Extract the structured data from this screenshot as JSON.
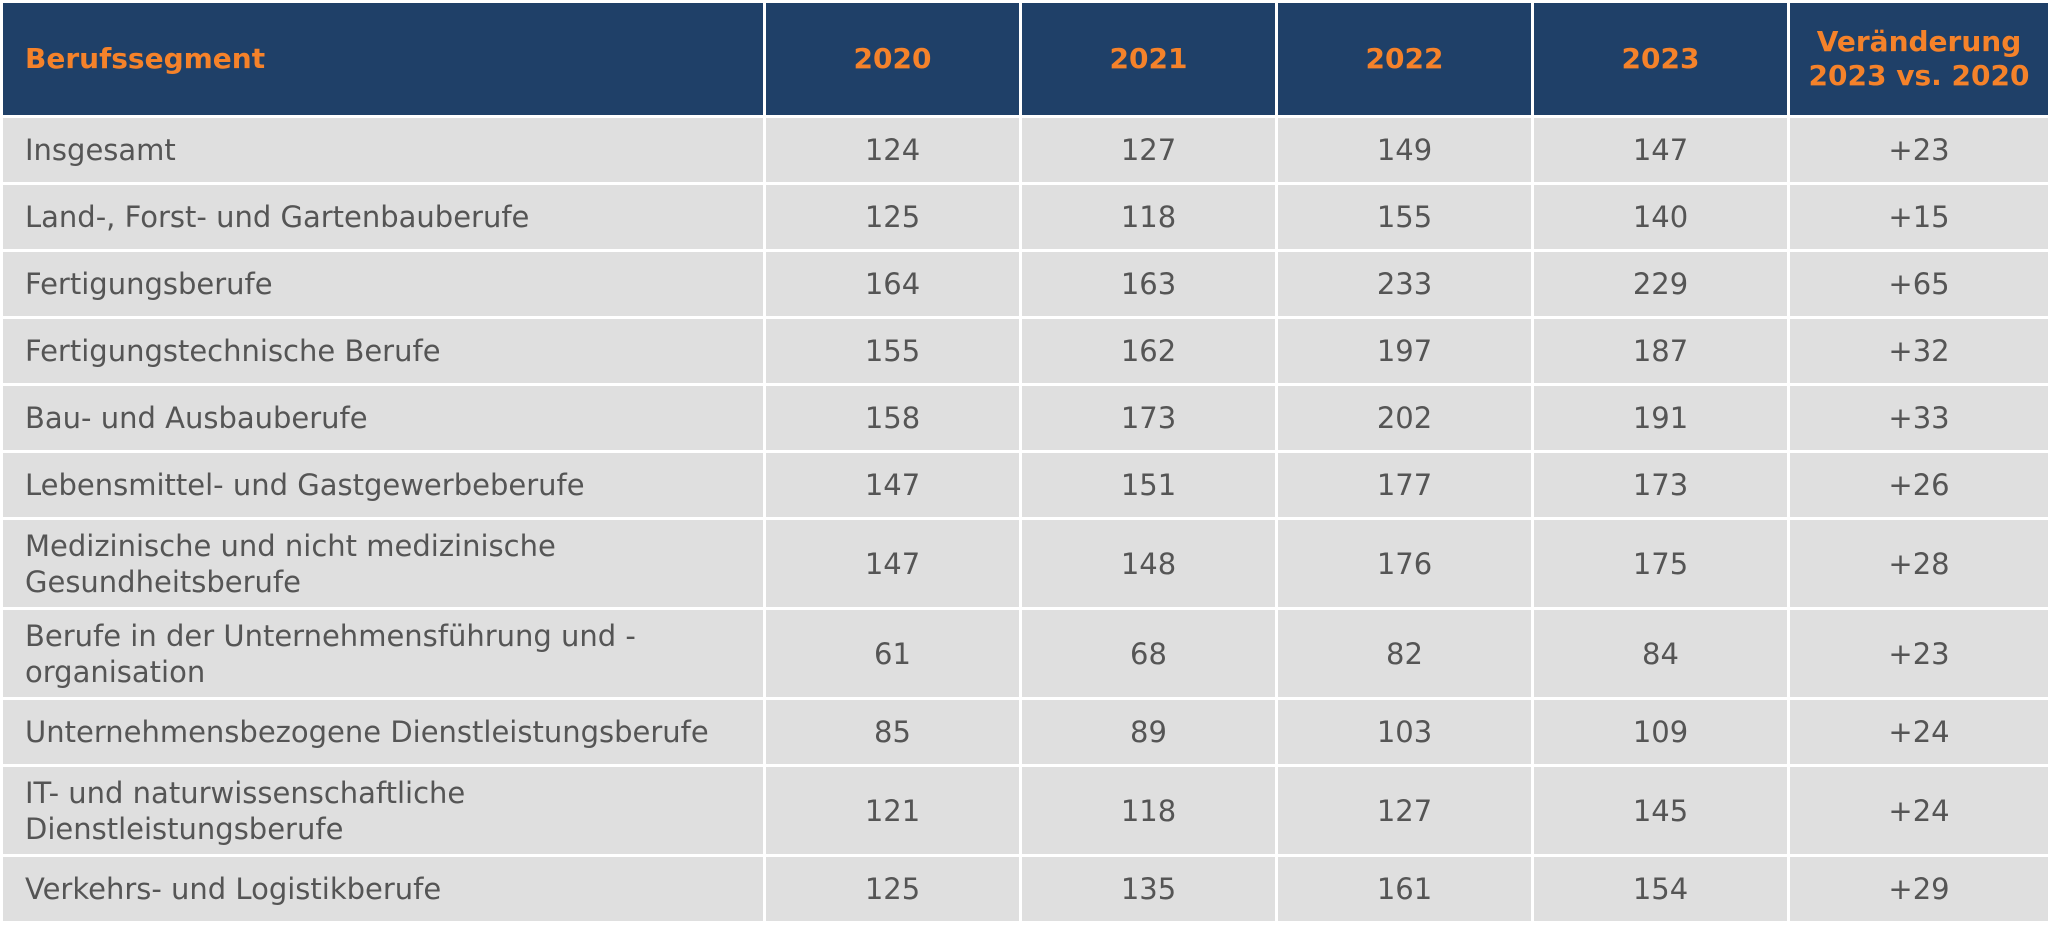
{
  "colors": {
    "header_bg": "#1f4068",
    "header_text": "#f5822a",
    "row_bg": "#dfdfdf",
    "cell_text": "#555555",
    "grid": "#ffffff"
  },
  "chart_data": {
    "type": "table",
    "columns": [
      "Berufssegment",
      "2020",
      "2021",
      "2022",
      "2023",
      "Veränderung 2023 vs. 2020"
    ],
    "rows": [
      [
        "Insgesamt",
        "124",
        "127",
        "149",
        "147",
        "+23"
      ],
      [
        "Land-, Forst- und Gartenbauberufe",
        "125",
        "118",
        "155",
        "140",
        "+15"
      ],
      [
        "Fertigungsberufe",
        "164",
        "163",
        "233",
        "229",
        "+65"
      ],
      [
        "Fertigungstechnische Berufe",
        "155",
        "162",
        "197",
        "187",
        "+32"
      ],
      [
        "Bau- und Ausbauberufe",
        "158",
        "173",
        "202",
        "191",
        "+33"
      ],
      [
        "Lebensmittel- und Gastgewerbeberufe",
        "147",
        "151",
        "177",
        "173",
        "+26"
      ],
      [
        "Medizinische und nicht medizinische Gesundheitsberufe",
        "147",
        "148",
        "176",
        "175",
        "+28"
      ],
      [
        "Berufe in der Unternehmensführung und -organisation",
        "61",
        "68",
        "82",
        "84",
        "+23"
      ],
      [
        "Unternehmensbezogene Dienstleistungsberufe",
        "85",
        "89",
        "103",
        "109",
        "+24"
      ],
      [
        "IT- und naturwissenschaftliche Dienstleistungsberufe",
        "121",
        "118",
        "127",
        "145",
        "+24"
      ],
      [
        "Verkehrs- und Logistikberufe",
        "125",
        "135",
        "161",
        "154",
        "+29"
      ]
    ]
  }
}
